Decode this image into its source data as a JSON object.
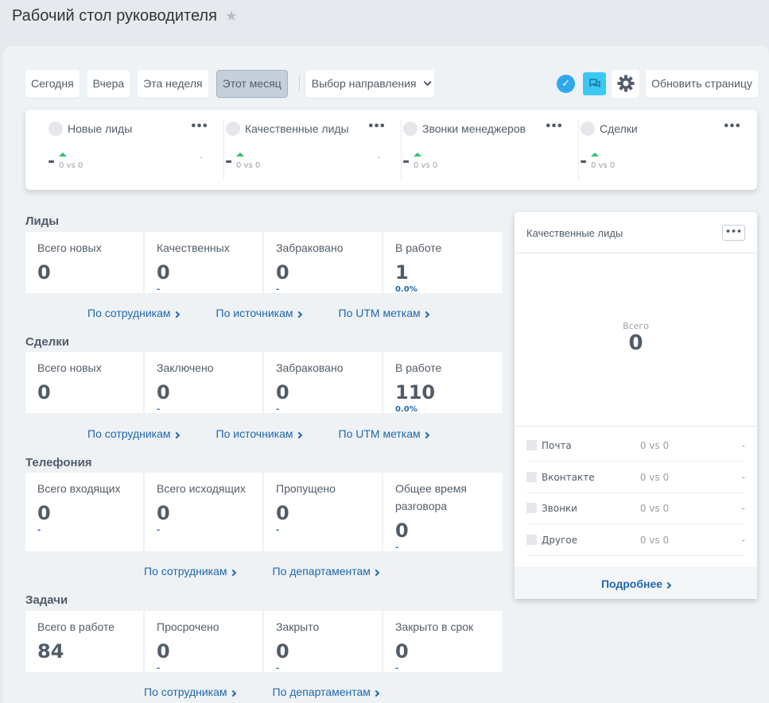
{
  "page": {
    "title": "Рабочий стол руководителя"
  },
  "toolbar": {
    "periods": [
      "Сегодня",
      "Вчера",
      "Эта неделя",
      "Этот месяц"
    ],
    "active_period": "Этот месяц",
    "direction_select": "Выбор направления",
    "refresh": "Обновить страницу",
    "accent_color": "#2fa8ee",
    "chat_color": "#3bc8f5"
  },
  "kpis": [
    {
      "name": "Новые лиды",
      "value": "-",
      "compare": "0 vs 0",
      "change": "-"
    },
    {
      "name": "Качественные лиды",
      "value": "-",
      "compare": "0 vs 0",
      "change": "-"
    },
    {
      "name": "Звонки менеджеров",
      "value": "-",
      "compare": "0 vs 0",
      "change": ""
    },
    {
      "name": "Сделки",
      "value": "-",
      "compare": "0 vs 0",
      "change": ""
    }
  ],
  "sections": {
    "leads": {
      "title": "Лиды",
      "stats": [
        {
          "label": "Всего новых",
          "value": "0",
          "sub": ""
        },
        {
          "label": "Качественных",
          "value": "0",
          "sub": "-"
        },
        {
          "label": "Забраковано",
          "value": "0",
          "sub": "-"
        },
        {
          "label": "В работе",
          "value": "1",
          "sub": "0.0%"
        }
      ],
      "links": [
        "По сотрудникам",
        "По источникам",
        "По UTM меткам"
      ]
    },
    "deals": {
      "title": "Сделки",
      "stats": [
        {
          "label": "Всего новых",
          "value": "0",
          "sub": ""
        },
        {
          "label": "Заключено",
          "value": "0",
          "sub": "-"
        },
        {
          "label": "Забраковано",
          "value": "0",
          "sub": "-"
        },
        {
          "label": "В работе",
          "value": "110",
          "sub": "0.0%"
        }
      ],
      "links": [
        "По сотрудникам",
        "По источникам",
        "По UTM меткам"
      ]
    },
    "telephony": {
      "title": "Телефония",
      "stats": [
        {
          "label": "Всего входящих",
          "value": "0",
          "sub": "-"
        },
        {
          "label": "Всего исходящих",
          "value": "0",
          "sub": "-"
        },
        {
          "label": "Пропущено",
          "value": "0",
          "sub": "-"
        },
        {
          "label": "Общее время разговора",
          "value": "0",
          "sub": "-"
        }
      ],
      "links": [
        "По сотрудникам",
        "По департаментам"
      ]
    },
    "tasks": {
      "title": "Задачи",
      "stats": [
        {
          "label": "Всего в работе",
          "value": "84",
          "sub": ""
        },
        {
          "label": "Просрочено",
          "value": "0",
          "sub": "-"
        },
        {
          "label": "Закрыто",
          "value": "0",
          "sub": "-"
        },
        {
          "label": "Закрыто в срок",
          "value": "0",
          "sub": "-"
        }
      ],
      "links": [
        "По сотрудникам",
        "По департаментам"
      ]
    }
  },
  "side_card": {
    "title": "Качественные лиды",
    "total_label": "Всего",
    "total": "0",
    "sources": [
      {
        "name": "Почта",
        "compare": "0 vs 0",
        "change": "-"
      },
      {
        "name": "Вконтакте",
        "compare": "0 vs 0",
        "change": "-"
      },
      {
        "name": "Звонки",
        "compare": "0 vs 0",
        "change": "-"
      },
      {
        "name": "Другое",
        "compare": "0 vs 0",
        "change": "-"
      }
    ],
    "footer_link": "Подробнее"
  }
}
